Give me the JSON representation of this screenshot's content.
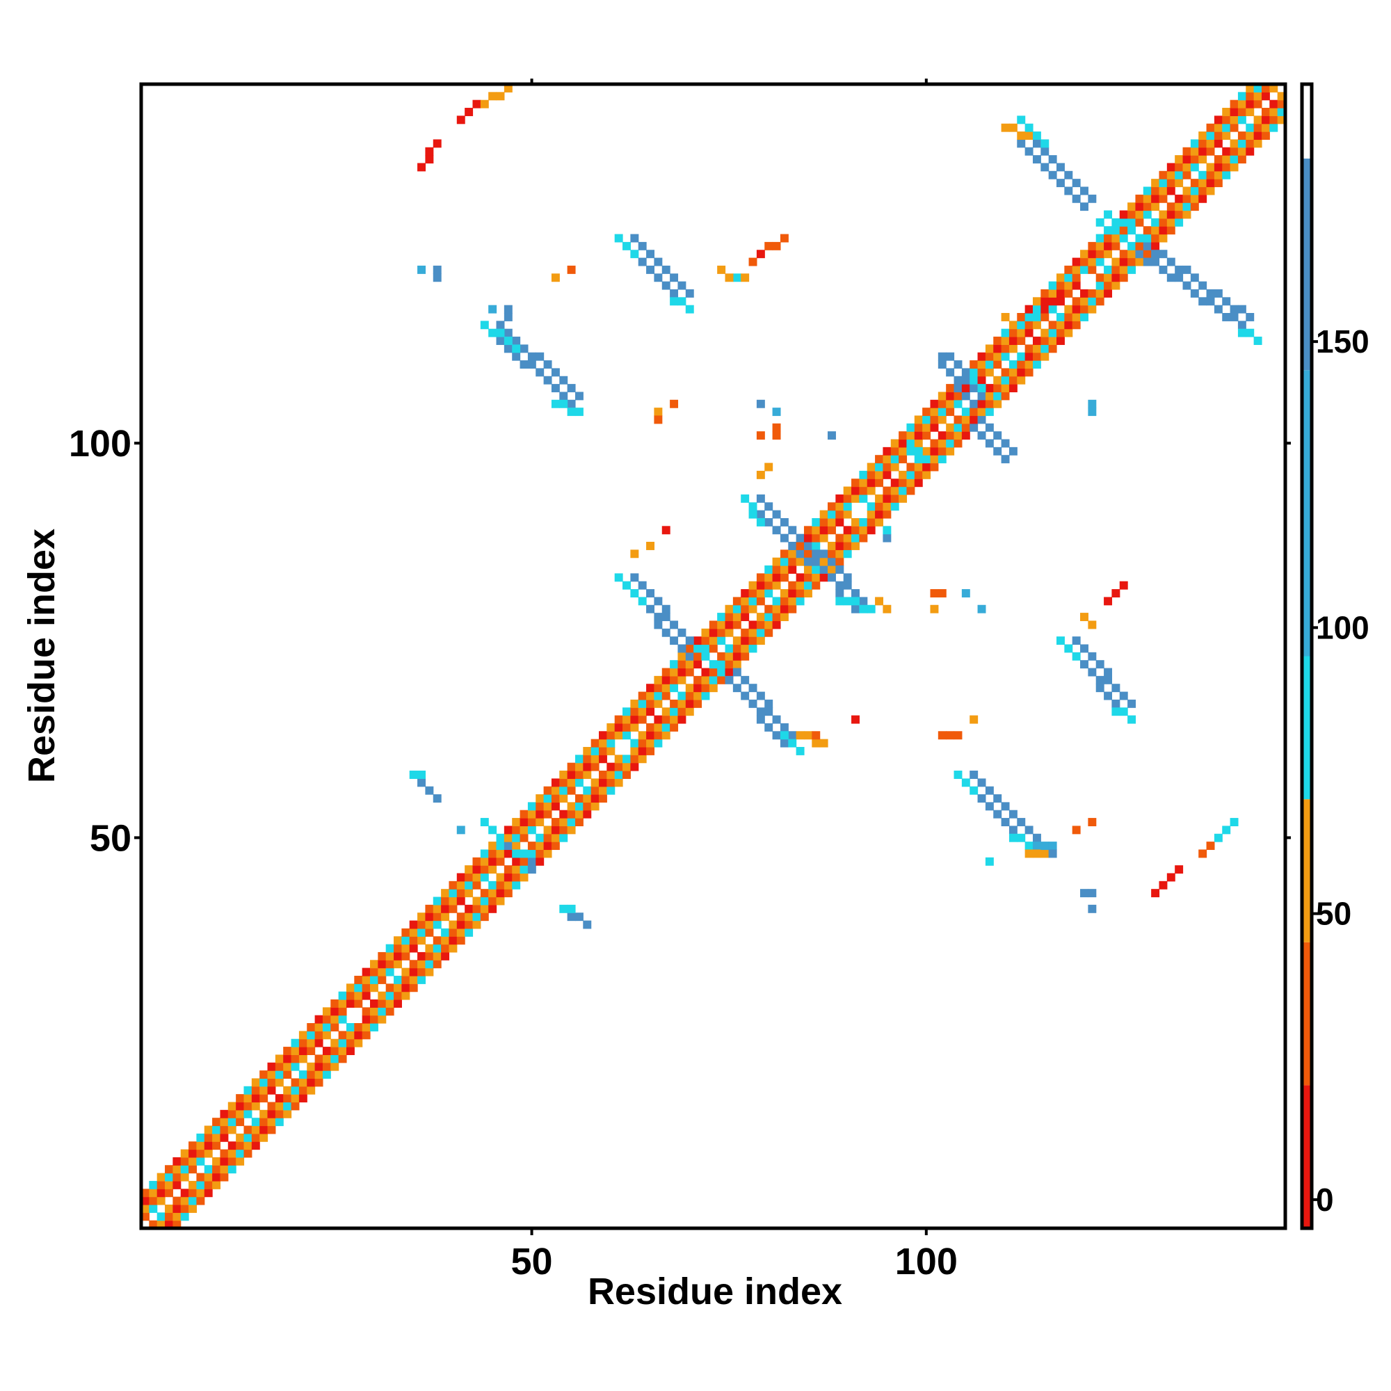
{
  "chart_data": {
    "type": "heatmap",
    "title": "",
    "xlabel": "Residue index",
    "ylabel": "Residue index",
    "n_residues": 145,
    "xlim": [
      1,
      145
    ],
    "ylim": [
      1,
      145
    ],
    "x_ticks": [
      50,
      100
    ],
    "y_ticks": [
      50,
      100
    ],
    "grid": false,
    "colorbar": {
      "placement": "right",
      "min": -5,
      "max": 195,
      "ticks": [
        0,
        50,
        100,
        150
      ],
      "bands": [
        {
          "from": -5,
          "to": 20,
          "color": "#e8170f"
        },
        {
          "from": 20,
          "to": 45,
          "color": "#f05a0a"
        },
        {
          "from": 45,
          "to": 70,
          "color": "#f39c12"
        },
        {
          "from": 70,
          "to": 95,
          "color": "#1ed8e8"
        },
        {
          "from": 95,
          "to": 145,
          "color": "#37abd8"
        },
        {
          "from": 145,
          "to": 182,
          "color": "#4a8ec5"
        },
        {
          "from": 182,
          "to": 195,
          "color": "#ffffff"
        }
      ]
    },
    "cell_colors": {
      "r": "#e8170f",
      "o": "#f05a0a",
      "y": "#f39c12",
      "c": "#1ed8e8",
      "s": "#37abd8",
      "b": "#4a8ec5"
    },
    "diagonal_pattern": [
      "o",
      "r",
      "y",
      "o",
      "c",
      "y"
    ],
    "segments": [
      {
        "x1": 36,
        "y1": 135,
        "x2": 38,
        "y2": 138,
        "w": 1,
        "c": "r"
      },
      {
        "x1": 41,
        "y1": 141,
        "x2": 45,
        "y2": 144,
        "w": 1,
        "c": "r"
      },
      {
        "x1": 44,
        "y1": 143,
        "x2": 47,
        "y2": 145,
        "w": 1,
        "c": "y"
      },
      {
        "x1": 129,
        "y1": 43,
        "x2": 132,
        "y2": 46,
        "w": 1,
        "c": "r"
      },
      {
        "x1": 135,
        "y1": 48,
        "x2": 138,
        "y2": 51,
        "w": 1,
        "c": "o"
      },
      {
        "x1": 137,
        "y1": 50,
        "x2": 139,
        "y2": 52,
        "w": 1,
        "c": "c"
      },
      {
        "x1": 62,
        "y1": 125,
        "x2": 69,
        "y2": 118,
        "w": 2,
        "c": "b"
      },
      {
        "x1": 61,
        "y1": 126,
        "x2": 63,
        "y2": 124,
        "w": 1,
        "c": "c"
      },
      {
        "x1": 68,
        "y1": 118,
        "x2": 70,
        "y2": 117,
        "w": 1,
        "c": "c"
      },
      {
        "x1": 45,
        "y1": 114,
        "x2": 55,
        "y2": 105,
        "w": 2,
        "c": "b"
      },
      {
        "x1": 44,
        "y1": 115,
        "x2": 48,
        "y2": 112,
        "w": 1,
        "c": "c"
      },
      {
        "x1": 53,
        "y1": 105,
        "x2": 56,
        "y2": 104,
        "w": 1,
        "c": "c"
      },
      {
        "x1": 62,
        "y1": 82,
        "x2": 70,
        "y2": 73,
        "w": 2,
        "c": "b"
      },
      {
        "x1": 61,
        "y1": 83,
        "x2": 64,
        "y2": 80,
        "w": 1,
        "c": "c"
      },
      {
        "x1": 71,
        "y1": 74,
        "x2": 75,
        "y2": 70,
        "w": 1,
        "c": "c"
      },
      {
        "x1": 75,
        "y1": 70,
        "x2": 82,
        "y2": 62,
        "w": 2,
        "c": "b"
      },
      {
        "x1": 82,
        "y1": 63,
        "x2": 84,
        "y2": 61,
        "w": 1,
        "c": "c"
      },
      {
        "x1": 84,
        "y1": 63,
        "x2": 87,
        "y2": 62,
        "w": 1,
        "c": "y"
      },
      {
        "x1": 91,
        "y1": 65,
        "x2": 91,
        "y2": 65,
        "w": 1,
        "c": "r"
      },
      {
        "x1": 78,
        "y1": 92,
        "x2": 85,
        "y2": 85,
        "w": 2,
        "c": "b"
      },
      {
        "x1": 77,
        "y1": 93,
        "x2": 79,
        "y2": 90,
        "w": 1,
        "c": "c"
      },
      {
        "x1": 86,
        "y1": 85,
        "x2": 91,
        "y2": 79,
        "w": 2,
        "c": "b"
      },
      {
        "x1": 89,
        "y1": 80,
        "x2": 93,
        "y2": 79,
        "w": 1,
        "c": "c"
      },
      {
        "x1": 94,
        "y1": 80,
        "x2": 95,
        "y2": 79,
        "w": 1,
        "c": "y"
      },
      {
        "x1": 79,
        "y1": 96,
        "x2": 80,
        "y2": 97,
        "w": 1,
        "c": "y"
      },
      {
        "x1": 102,
        "y1": 110,
        "x2": 106,
        "y2": 105,
        "w": 2,
        "c": "b"
      },
      {
        "x1": 106,
        "y1": 102,
        "x2": 110,
        "y2": 98,
        "w": 2,
        "c": "b"
      },
      {
        "x1": 98,
        "y1": 100,
        "x2": 100,
        "y2": 98,
        "w": 1,
        "c": "c"
      },
      {
        "x1": 112,
        "y1": 138,
        "x2": 120,
        "y2": 130,
        "w": 2,
        "c": "b"
      },
      {
        "x1": 112,
        "y1": 141,
        "x2": 115,
        "y2": 138,
        "w": 1,
        "c": "c"
      },
      {
        "x1": 110,
        "y1": 140,
        "x2": 113,
        "y2": 139,
        "w": 1,
        "c": "y"
      },
      {
        "x1": 122,
        "y1": 128,
        "x2": 126,
        "y2": 125,
        "w": 2,
        "c": "c"
      },
      {
        "x1": 127,
        "y1": 124,
        "x2": 140,
        "y2": 115,
        "w": 2,
        "c": "b"
      },
      {
        "x1": 140,
        "y1": 114,
        "x2": 142,
        "y2": 113,
        "w": 1,
        "c": "c"
      },
      {
        "x1": 118,
        "y1": 74,
        "x2": 125,
        "y2": 66,
        "w": 2,
        "c": "b"
      },
      {
        "x1": 117,
        "y1": 75,
        "x2": 119,
        "y2": 73,
        "w": 1,
        "c": "c"
      },
      {
        "x1": 124,
        "y1": 66,
        "x2": 126,
        "y2": 65,
        "w": 1,
        "c": "c"
      },
      {
        "x1": 105,
        "y1": 57,
        "x2": 113,
        "y2": 49,
        "w": 2,
        "c": "b"
      },
      {
        "x1": 104,
        "y1": 58,
        "x2": 106,
        "y2": 56,
        "w": 1,
        "c": "c"
      },
      {
        "x1": 111,
        "y1": 50,
        "x2": 114,
        "y2": 49,
        "w": 1,
        "c": "c"
      },
      {
        "x1": 113,
        "y1": 48,
        "x2": 115,
        "y2": 48,
        "w": 1,
        "c": "y"
      },
      {
        "x1": 114,
        "y1": 49,
        "x2": 116,
        "y2": 49,
        "w": 1,
        "c": "s"
      },
      {
        "x1": 35,
        "y1": 58,
        "x2": 38,
        "y2": 55,
        "w": 1,
        "c": "b"
      },
      {
        "x1": 35,
        "y1": 58,
        "x2": 36,
        "y2": 58,
        "w": 1,
        "c": "c"
      },
      {
        "x1": 44,
        "y1": 52,
        "x2": 46,
        "y2": 50,
        "w": 1,
        "c": "c"
      },
      {
        "x1": 47,
        "y1": 49,
        "x2": 50,
        "y2": 47,
        "w": 1,
        "c": "b"
      },
      {
        "x1": 48,
        "y1": 48,
        "x2": 49,
        "y2": 48,
        "w": 1,
        "c": "c"
      },
      {
        "x1": 54,
        "y1": 41,
        "x2": 57,
        "y2": 39,
        "w": 1,
        "c": "b"
      },
      {
        "x1": 54,
        "y1": 41,
        "x2": 55,
        "y2": 41,
        "w": 1,
        "c": "c"
      },
      {
        "x1": 102,
        "y1": 63,
        "x2": 104,
        "y2": 63,
        "w": 1,
        "c": "o"
      },
      {
        "x1": 123,
        "y1": 80,
        "x2": 125,
        "y2": 82,
        "w": 1,
        "c": "r"
      },
      {
        "x1": 120,
        "y1": 78,
        "x2": 121,
        "y2": 77,
        "w": 1,
        "c": "y"
      },
      {
        "x1": 102,
        "y1": 111,
        "x2": 104,
        "y2": 110,
        "w": 1,
        "c": "b"
      },
      {
        "x1": 106,
        "y1": 108,
        "x2": 107,
        "y2": 107,
        "w": 1,
        "c": "c"
      },
      {
        "x1": 110,
        "y1": 116,
        "x2": 111,
        "y2": 115,
        "w": 1,
        "c": "y"
      },
      {
        "x1": 113,
        "y1": 116,
        "x2": 115,
        "y2": 117,
        "w": 1,
        "c": "c"
      },
      {
        "x1": 115,
        "y1": 117,
        "x2": 117,
        "y2": 118,
        "w": 1,
        "c": "r"
      }
    ],
    "points": [
      {
        "x": 36,
        "y": 122,
        "c": "s"
      },
      {
        "x": 38,
        "y": 122,
        "c": "b"
      },
      {
        "x": 38,
        "y": 121,
        "c": "b"
      },
      {
        "x": 45,
        "y": 117,
        "c": "s"
      },
      {
        "x": 47,
        "y": 117,
        "c": "b"
      },
      {
        "x": 47,
        "y": 116,
        "c": "b"
      },
      {
        "x": 53,
        "y": 121,
        "c": "y"
      },
      {
        "x": 55,
        "y": 122,
        "c": "o"
      },
      {
        "x": 66,
        "y": 104,
        "c": "y"
      },
      {
        "x": 66,
        "y": 103,
        "c": "o"
      },
      {
        "x": 68,
        "y": 105,
        "c": "o"
      },
      {
        "x": 74,
        "y": 122,
        "c": "y"
      },
      {
        "x": 76,
        "y": 121,
        "c": "c"
      },
      {
        "x": 75,
        "y": 121,
        "c": "y"
      },
      {
        "x": 77,
        "y": 121,
        "c": "y"
      },
      {
        "x": 78,
        "y": 123,
        "c": "o"
      },
      {
        "x": 79,
        "y": 124,
        "c": "r"
      },
      {
        "x": 80,
        "y": 125,
        "c": "o"
      },
      {
        "x": 81,
        "y": 125,
        "c": "o"
      },
      {
        "x": 82,
        "y": 126,
        "c": "o"
      },
      {
        "x": 79,
        "y": 105,
        "c": "b"
      },
      {
        "x": 81,
        "y": 104,
        "c": "s"
      },
      {
        "x": 79,
        "y": 101,
        "c": "o"
      },
      {
        "x": 81,
        "y": 101,
        "c": "o"
      },
      {
        "x": 81,
        "y": 102,
        "c": "o"
      },
      {
        "x": 88,
        "y": 101,
        "c": "b"
      },
      {
        "x": 67,
        "y": 89,
        "c": "r"
      },
      {
        "x": 65,
        "y": 87,
        "c": "y"
      },
      {
        "x": 63,
        "y": 86,
        "c": "y"
      },
      {
        "x": 95,
        "y": 88,
        "c": "b"
      },
      {
        "x": 95,
        "y": 89,
        "c": "c"
      },
      {
        "x": 101,
        "y": 81,
        "c": "o"
      },
      {
        "x": 102,
        "y": 81,
        "c": "o"
      },
      {
        "x": 101,
        "y": 79,
        "c": "y"
      },
      {
        "x": 105,
        "y": 81,
        "c": "s"
      },
      {
        "x": 107,
        "y": 79,
        "c": "s"
      },
      {
        "x": 112,
        "y": 111,
        "c": "c"
      },
      {
        "x": 121,
        "y": 105,
        "c": "s"
      },
      {
        "x": 121,
        "y": 104,
        "c": "s"
      },
      {
        "x": 121,
        "y": 52,
        "c": "o"
      },
      {
        "x": 119,
        "y": 51,
        "c": "o"
      },
      {
        "x": 120,
        "y": 43,
        "c": "b"
      },
      {
        "x": 121,
        "y": 43,
        "c": "b"
      },
      {
        "x": 121,
        "y": 41,
        "c": "b"
      },
      {
        "x": 116,
        "y": 48,
        "c": "b"
      },
      {
        "x": 108,
        "y": 47,
        "c": "c"
      },
      {
        "x": 50,
        "y": 46,
        "c": "b"
      },
      {
        "x": 41,
        "y": 51,
        "c": "s"
      },
      {
        "x": 86,
        "y": 63,
        "c": "o"
      },
      {
        "x": 106,
        "y": 65,
        "c": "y"
      }
    ],
    "gaps": [
      {
        "x": 27,
        "y": 28
      },
      {
        "x": 61,
        "y": 62
      },
      {
        "x": 91,
        "y": 92
      },
      {
        "x": 120,
        "y": 121
      }
    ]
  }
}
